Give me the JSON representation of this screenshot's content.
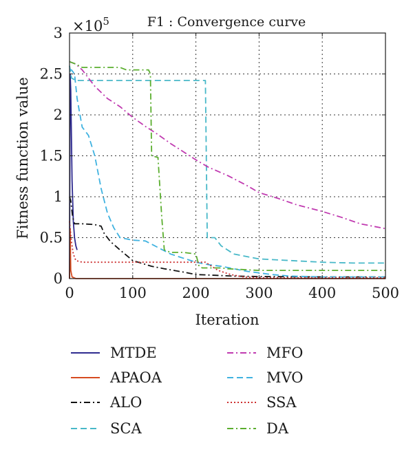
{
  "chart_data": {
    "type": "line",
    "title": "F1 : Convergence curve",
    "xlabel": "Iteration",
    "ylabel": "Fitness function value",
    "y_multiplier_label": "×10",
    "y_multiplier_exponent": "5",
    "xlim": [
      0,
      500
    ],
    "ylim": [
      0,
      3
    ],
    "x_ticks": [
      0,
      100,
      200,
      300,
      400,
      500
    ],
    "y_ticks": [
      0,
      0.5,
      1,
      1.5,
      2,
      2.5,
      3
    ],
    "x_tick_labels": [
      "0",
      "100",
      "200",
      "300",
      "400",
      "500"
    ],
    "y_tick_labels": [
      "0",
      "0.5",
      "1",
      "1.5",
      "2",
      "2.5",
      "3"
    ],
    "grid": true,
    "legend_position": "below",
    "series": [
      {
        "name": "MTDE",
        "color": "#2e2a8f",
        "dash": "solid",
        "points": [
          [
            0,
            0
          ],
          [
            1,
            2.5
          ],
          [
            2,
            2.3
          ],
          [
            4,
            1.2
          ],
          [
            6,
            0.7
          ],
          [
            8,
            0.5
          ],
          [
            10,
            0.4
          ],
          [
            12,
            0.35
          ]
        ]
      },
      {
        "name": "APAOA",
        "color": "#d64a1f",
        "dash": "solid",
        "points": [
          [
            0,
            0
          ],
          [
            1,
            0.6
          ],
          [
            2,
            0.1
          ],
          [
            4,
            0.02
          ],
          [
            10,
            0
          ],
          [
            500,
            0
          ]
        ]
      },
      {
        "name": "ALO",
        "color": "#111111",
        "dash": "dashdot",
        "points": [
          [
            0,
            1.0
          ],
          [
            2,
            0.95
          ],
          [
            5,
            0.75
          ],
          [
            8,
            0.67
          ],
          [
            20,
            0.67
          ],
          [
            40,
            0.66
          ],
          [
            50,
            0.64
          ],
          [
            55,
            0.55
          ],
          [
            65,
            0.45
          ],
          [
            80,
            0.35
          ],
          [
            100,
            0.22
          ],
          [
            130,
            0.15
          ],
          [
            150,
            0.12
          ],
          [
            180,
            0.08
          ],
          [
            200,
            0.05
          ],
          [
            230,
            0.04
          ],
          [
            260,
            0.03
          ],
          [
            300,
            0.025
          ],
          [
            400,
            0.02
          ],
          [
            500,
            0.02
          ]
        ]
      },
      {
        "name": "SCA",
        "color": "#47b8c8",
        "dash": "dashed",
        "points": [
          [
            0,
            2.6
          ],
          [
            3,
            2.45
          ],
          [
            10,
            2.42
          ],
          [
            100,
            2.42
          ],
          [
            200,
            2.42
          ],
          [
            215,
            2.42
          ],
          [
            218,
            0.5
          ],
          [
            230,
            0.5
          ],
          [
            240,
            0.4
          ],
          [
            260,
            0.3
          ],
          [
            280,
            0.27
          ],
          [
            300,
            0.24
          ],
          [
            350,
            0.22
          ],
          [
            400,
            0.2
          ],
          [
            450,
            0.19
          ],
          [
            500,
            0.19
          ]
        ]
      },
      {
        "name": "MFO",
        "color": "#c03ab0",
        "dash": "dashdot",
        "points": [
          [
            0,
            2.65
          ],
          [
            10,
            2.62
          ],
          [
            20,
            2.55
          ],
          [
            40,
            2.35
          ],
          [
            60,
            2.2
          ],
          [
            80,
            2.1
          ],
          [
            100,
            1.97
          ],
          [
            120,
            1.86
          ],
          [
            140,
            1.76
          ],
          [
            160,
            1.65
          ],
          [
            180,
            1.55
          ],
          [
            200,
            1.45
          ],
          [
            220,
            1.36
          ],
          [
            250,
            1.26
          ],
          [
            280,
            1.14
          ],
          [
            300,
            1.05
          ],
          [
            330,
            0.98
          ],
          [
            360,
            0.9
          ],
          [
            400,
            0.82
          ],
          [
            430,
            0.75
          ],
          [
            460,
            0.67
          ],
          [
            500,
            0.61
          ]
        ]
      },
      {
        "name": "MVO",
        "color": "#3fb2e0",
        "dash": "dashed",
        "points": [
          [
            0,
            2.55
          ],
          [
            3,
            2.55
          ],
          [
            8,
            2.5
          ],
          [
            12,
            2.2
          ],
          [
            20,
            1.85
          ],
          [
            30,
            1.75
          ],
          [
            40,
            1.5
          ],
          [
            50,
            1.1
          ],
          [
            60,
            0.8
          ],
          [
            70,
            0.62
          ],
          [
            80,
            0.5
          ],
          [
            100,
            0.47
          ],
          [
            120,
            0.46
          ],
          [
            140,
            0.38
          ],
          [
            160,
            0.3
          ],
          [
            180,
            0.25
          ],
          [
            200,
            0.2
          ],
          [
            220,
            0.17
          ],
          [
            240,
            0.15
          ],
          [
            260,
            0.12
          ],
          [
            280,
            0.09
          ],
          [
            300,
            0.07
          ],
          [
            320,
            0.05
          ],
          [
            350,
            0.03
          ],
          [
            400,
            0.02
          ],
          [
            450,
            0.02
          ],
          [
            500,
            0.02
          ]
        ]
      },
      {
        "name": "SSA",
        "color": "#cc2d2d",
        "dash": "dotted",
        "points": [
          [
            0,
            0.7
          ],
          [
            3,
            0.45
          ],
          [
            6,
            0.3
          ],
          [
            10,
            0.22
          ],
          [
            20,
            0.2
          ],
          [
            100,
            0.2
          ],
          [
            200,
            0.2
          ],
          [
            215,
            0.2
          ],
          [
            235,
            0.1
          ],
          [
            255,
            0.05
          ],
          [
            275,
            0.02
          ],
          [
            300,
            0.01
          ],
          [
            500,
            0.01
          ]
        ]
      },
      {
        "name": "DA",
        "color": "#5aae2e",
        "dash": "dashdot",
        "points": [
          [
            0,
            2.65
          ],
          [
            10,
            2.62
          ],
          [
            20,
            2.58
          ],
          [
            60,
            2.58
          ],
          [
            80,
            2.58
          ],
          [
            90,
            2.55
          ],
          [
            125,
            2.55
          ],
          [
            128,
            2.5
          ],
          [
            130,
            1.5
          ],
          [
            140,
            1.48
          ],
          [
            146,
            0.75
          ],
          [
            150,
            0.35
          ],
          [
            160,
            0.32
          ],
          [
            180,
            0.32
          ],
          [
            200,
            0.3
          ],
          [
            205,
            0.15
          ],
          [
            210,
            0.13
          ],
          [
            240,
            0.13
          ],
          [
            250,
            0.12
          ],
          [
            300,
            0.1
          ],
          [
            400,
            0.1
          ],
          [
            500,
            0.1
          ]
        ]
      }
    ]
  }
}
